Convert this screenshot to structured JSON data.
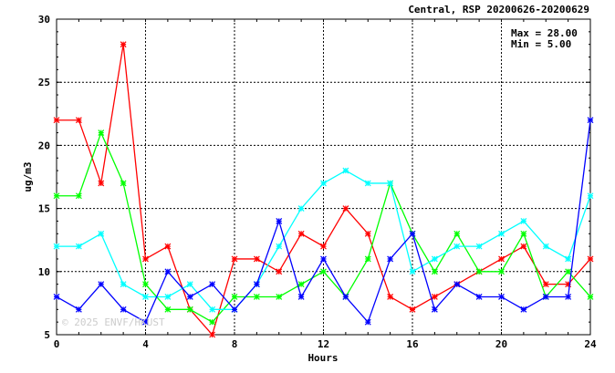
{
  "chart_data": {
    "type": "line",
    "title": "Central, RSP 20200626-20200629",
    "xlabel": "Hours",
    "ylabel": "ug/m3",
    "xlim": [
      0,
      24
    ],
    "ylim": [
      5,
      30
    ],
    "xticks": [
      0,
      4,
      8,
      12,
      16,
      20,
      24
    ],
    "yticks": [
      5,
      10,
      15,
      20,
      25,
      30
    ],
    "grid": true,
    "max_label": "Max = 28.00",
    "min_label": "Min =  5.00",
    "watermark": "© 2025  ENVF/HKUST",
    "x": [
      0,
      1,
      2,
      3,
      4,
      5,
      6,
      7,
      8,
      9,
      10,
      11,
      12,
      13,
      14,
      15,
      16,
      17,
      18,
      19,
      20,
      21,
      22,
      23,
      24
    ],
    "series": [
      {
        "color": "#ff0000",
        "values": [
          22,
          22,
          17,
          28,
          11,
          12,
          7,
          5,
          11,
          11,
          10,
          13,
          12,
          15,
          13,
          8,
          7,
          8,
          9,
          10,
          11,
          12,
          9,
          9,
          11
        ]
      },
      {
        "color": "#00ff00",
        "values": [
          16,
          16,
          21,
          17,
          9,
          7,
          7,
          6,
          8,
          8,
          8,
          9,
          10,
          8,
          11,
          17,
          13,
          10,
          13,
          10,
          10,
          13,
          8,
          10,
          8
        ]
      },
      {
        "color": "#00ffff",
        "values": [
          12,
          12,
          13,
          9,
          8,
          8,
          9,
          7,
          7,
          9,
          12,
          15,
          17,
          18,
          17,
          17,
          10,
          11,
          12,
          12,
          13,
          14,
          12,
          11,
          16
        ]
      },
      {
        "color": "#0000ff",
        "values": [
          8,
          7,
          9,
          7,
          6,
          10,
          8,
          9,
          7,
          9,
          14,
          8,
          11,
          8,
          6,
          11,
          13,
          7,
          9,
          8,
          8,
          7,
          8,
          8,
          22
        ]
      }
    ]
  }
}
